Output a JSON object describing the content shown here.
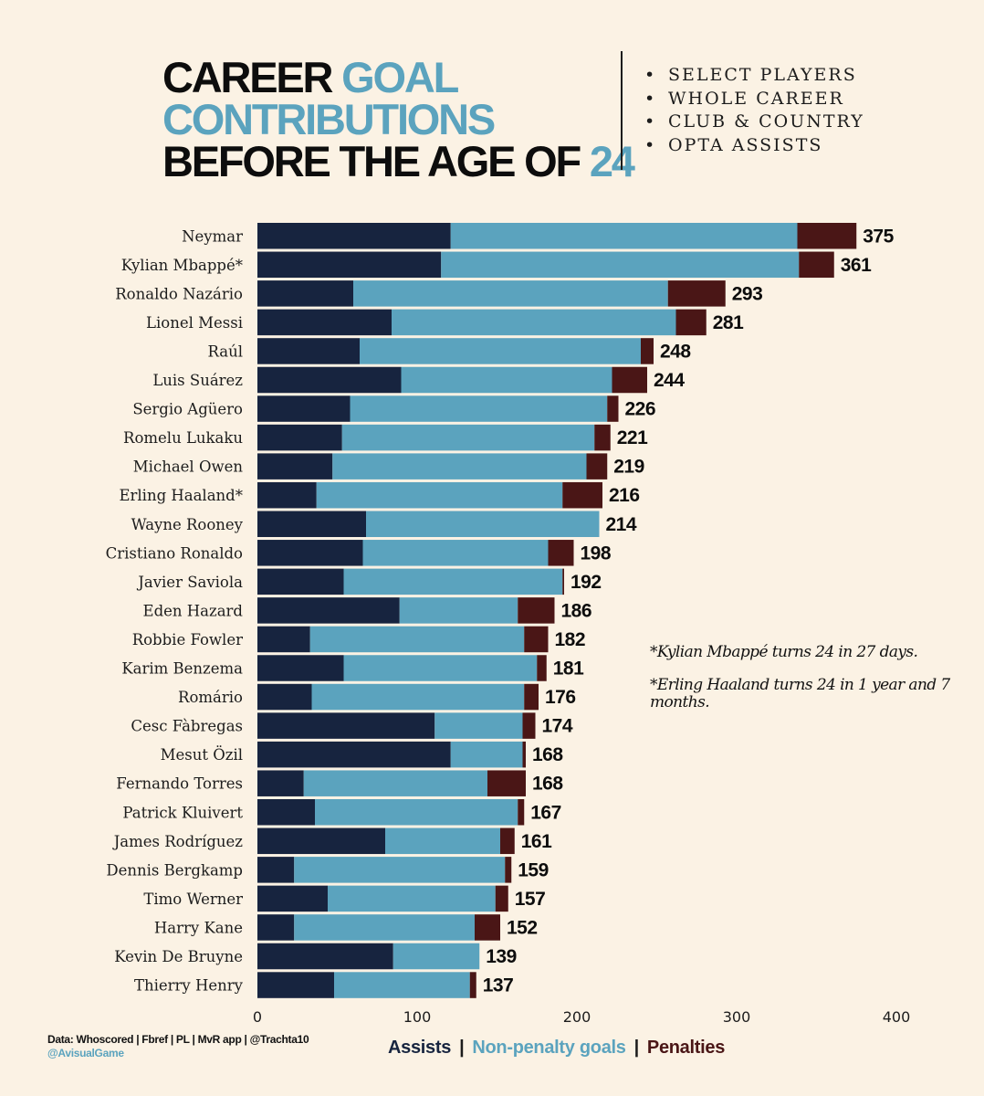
{
  "header": {
    "title_parts": [
      "CAREER ",
      "GOAL",
      "CONTRIBUTIONS",
      "BEFORE THE AGE OF ",
      "24"
    ],
    "bullets": [
      "SELECT PLAYERS",
      "WHOLE CAREER",
      "CLUB & COUNTRY",
      "OPTA ASSISTS"
    ]
  },
  "notes": {
    "mbappe": "*Kylian Mbappé turns 24 in 27 days.",
    "haaland": "*Erling Haaland turns 24 in 1 year and 7 months."
  },
  "footer": {
    "source": "Data: Whoscored | Fbref | PL | MvR app | @Trachta10",
    "handle": "@AvisualGame"
  },
  "colors": {
    "assists": "#17243f",
    "non_penalty_goals": "#5ba3be",
    "penalties": "#4a1616",
    "background": "#fbf2e4"
  },
  "chart_data": {
    "type": "bar",
    "orientation": "horizontal",
    "stacked": true,
    "xlim": [
      0,
      400
    ],
    "xticks": [
      0,
      100,
      200,
      300,
      400
    ],
    "categories": [
      "Neymar",
      "Kylian Mbappé*",
      "Ronaldo Nazário",
      "Lionel Messi",
      "Raúl",
      "Luis Suárez",
      "Sergio Agüero",
      "Romelu Lukaku",
      "Michael Owen",
      "Erling Haaland*",
      "Wayne Rooney",
      "Cristiano Ronaldo",
      "Javier Saviola",
      "Eden Hazard",
      "Robbie Fowler",
      "Karim Benzema",
      "Romário",
      "Cesc Fàbregas",
      "Mesut Özil",
      "Fernando Torres",
      "Patrick Kluivert",
      "James Rodríguez",
      "Dennis Bergkamp",
      "Timo Werner",
      "Harry Kane",
      "Kevin De Bruyne",
      "Thierry Henry"
    ],
    "series": [
      {
        "name": "Assists",
        "values": [
          121,
          115,
          60,
          84,
          64,
          90,
          58,
          53,
          47,
          37,
          68,
          66,
          54,
          89,
          33,
          54,
          34,
          111,
          121,
          29,
          36,
          80,
          23,
          44,
          23,
          85,
          48
        ]
      },
      {
        "name": "Non-penalty goals",
        "values": [
          217,
          224,
          197,
          178,
          176,
          132,
          161,
          158,
          159,
          154,
          146,
          116,
          137,
          74,
          134,
          121,
          133,
          55,
          45,
          115,
          127,
          72,
          132,
          105,
          113,
          54,
          85
        ]
      },
      {
        "name": "Penalties",
        "values": [
          37,
          22,
          36,
          19,
          8,
          22,
          7,
          10,
          13,
          25,
          0,
          16,
          1,
          23,
          15,
          6,
          9,
          8,
          2,
          24,
          4,
          9,
          4,
          8,
          16,
          0,
          4
        ]
      }
    ],
    "totals": [
      375,
      361,
      293,
      281,
      248,
      244,
      226,
      221,
      219,
      216,
      214,
      198,
      192,
      186,
      182,
      181,
      176,
      174,
      168,
      168,
      167,
      161,
      159,
      157,
      152,
      139,
      137
    ]
  }
}
